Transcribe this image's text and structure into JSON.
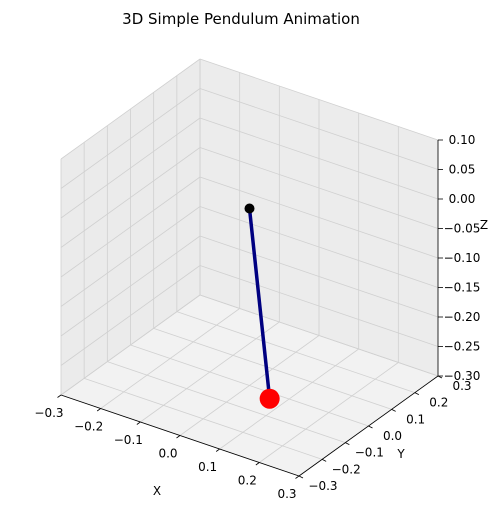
{
  "chart_data": {
    "type": "line3d",
    "title": "3D Simple Pendulum Animation",
    "xlabel": "X",
    "ylabel": "Y",
    "zlabel": "Z",
    "xlim": [
      -0.3,
      0.3
    ],
    "ylim": [
      -0.3,
      0.3
    ],
    "zlim": [
      -0.3,
      0.1
    ],
    "x_ticks": [
      "−0.3",
      "−0.2",
      "−0.1",
      "0.0",
      "0.1",
      "0.2",
      "0.3"
    ],
    "y_ticks": [
      "−0.3",
      "−0.2",
      "−0.1",
      "0.0",
      "0.1",
      "0.2",
      "0.3"
    ],
    "z_ticks": [
      "−0.30",
      "−0.25",
      "−0.20",
      "−0.15",
      "−0.10",
      "−0.05",
      "0.00",
      "0.05",
      "0.10"
    ],
    "grid": true,
    "pivot": {
      "x": 0.0,
      "y": 0.0,
      "z": 0.0
    },
    "bob": {
      "x": 0.08,
      "y": -0.05,
      "z": -0.29
    },
    "colors": {
      "rod": "#000080",
      "pivot": "#000000",
      "bob": "#ff0000",
      "pane": "#f2f2f2",
      "grid": "#d0d0d0",
      "axis": "#000000"
    }
  }
}
